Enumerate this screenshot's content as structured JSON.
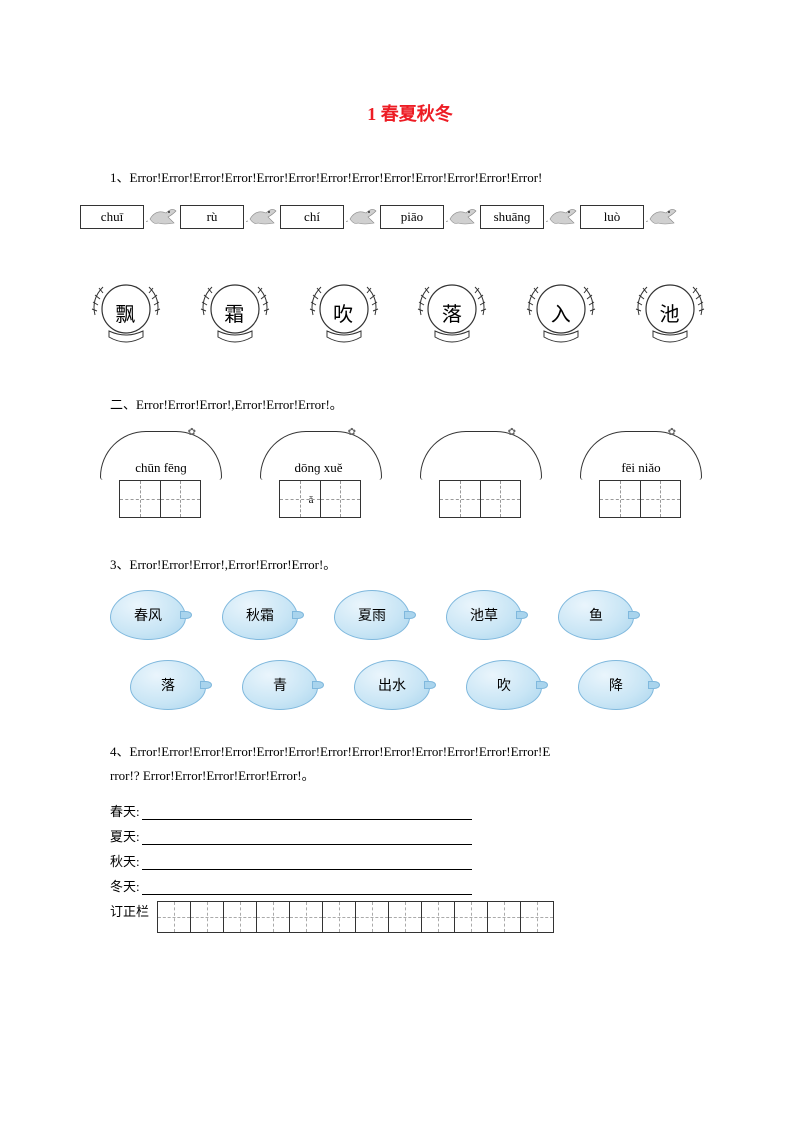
{
  "title": "1 春夏秋冬",
  "colors": {
    "title": "#ed1c24",
    "lemon_fill_light": "#eaf5fc",
    "lemon_fill_dark": "#a9d4ed",
    "lemon_border": "#7fb8dd",
    "bg": "#ffffff"
  },
  "q1": {
    "prefix": "1、",
    "text": "Error!Error!Error!Error!Error!Error!Error!Error!Error!Error!Error!Error!Error!",
    "pinyin": [
      "chuī",
      "rù",
      "chí",
      "piāo",
      "shuānɡ",
      "luò"
    ],
    "chars": [
      "飘",
      "霜",
      "吹",
      "落",
      "入",
      "池"
    ]
  },
  "q2": {
    "prefix": "二、",
    "text": "Error!Error!Error!,Error!Error!Error!。",
    "items": [
      "chūn fēnɡ",
      "dōnɡ xuě",
      "",
      "fēi niǎo"
    ],
    "extra": "ǎ"
  },
  "q3": {
    "prefix": "3、",
    "text": "Error!Error!Error!,Error!Error!Error!。",
    "row1": [
      "春风",
      "秋霜",
      "夏雨",
      "池草",
      "鱼"
    ],
    "row2": [
      "落",
      "青",
      "出水",
      "吹",
      "降"
    ]
  },
  "q4": {
    "prefix": "4、",
    "line1": "Error!Error!Error!Error!Error!Error!Error!Error!Error!Error!Error!Error!Error!E",
    "line2": "rror!? Error!Error!Error!Error!Error!。",
    "seasons": [
      "春天:",
      "夏天:",
      "秋天:",
      "冬天:"
    ],
    "corr_label": "订正栏",
    "corr_cells": 12
  }
}
